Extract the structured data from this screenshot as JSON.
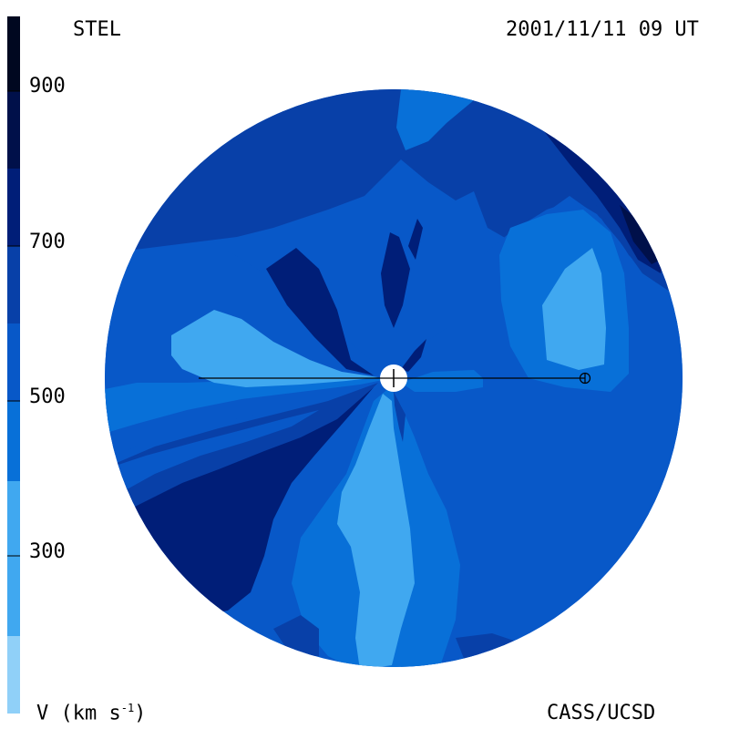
{
  "header": {
    "left_label": "STEL",
    "right_label": "2001/11/11 09 UT"
  },
  "footer": {
    "left_label": "V (km s",
    "left_label_sup": "-1",
    "left_label_close": ")",
    "right_label": "CASS/UCSD"
  },
  "colors": {
    "band_lightest": "#90d0f8",
    "band_300": "#40a8f0",
    "band_400": "#0870d8",
    "band_500": "#0858c8",
    "band_600": "#0840a8",
    "band_700": "#001e78",
    "band_800": "#00104a",
    "band_900": "#000820"
  },
  "chart_data": {
    "type": "heatmap",
    "title": "",
    "colorbar": {
      "label": "V (km s-1)",
      "ticks": [
        300,
        500,
        700,
        900
      ],
      "tick_labels": [
        "300",
        "500",
        "700",
        "900"
      ],
      "bands": [
        {
          "from": 200,
          "to": 300,
          "color": "#90d0f8"
        },
        {
          "from": 300,
          "to": 400,
          "color": "#40a8f0"
        },
        {
          "from": 400,
          "to": 500,
          "color": "#0870d8"
        },
        {
          "from": 500,
          "to": 600,
          "color": "#0858c8"
        },
        {
          "from": 600,
          "to": 700,
          "color": "#0840a8"
        },
        {
          "from": 700,
          "to": 800,
          "color": "#001e78"
        },
        {
          "from": 800,
          "to": 900,
          "color": "#00104a"
        },
        {
          "from": 900,
          "to": 1000,
          "color": "#000820"
        }
      ]
    },
    "markers": [
      "sun-center",
      "earth"
    ]
  }
}
